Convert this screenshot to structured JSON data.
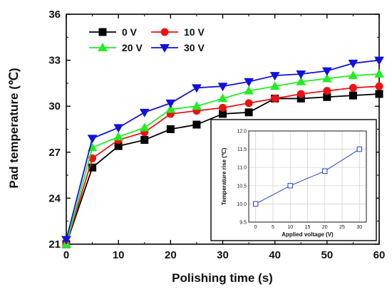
{
  "colors": {
    "series_0v": "#000000",
    "series_10v": "#ee1111",
    "series_20v": "#22ee22",
    "series_30v": "#1111dd",
    "inset_line": "#2244cc"
  },
  "chart_data": [
    {
      "type": "line",
      "xlabel": "Polishing time (s)",
      "ylabel": "Pad temperature (℃)",
      "xlim": [
        0,
        60
      ],
      "ylim": [
        21,
        36
      ],
      "xticks": [
        0,
        10,
        20,
        30,
        40,
        50,
        60
      ],
      "yticks": [
        21,
        24,
        27,
        30,
        33,
        36
      ],
      "x": [
        0,
        5,
        10,
        15,
        20,
        25,
        30,
        35,
        40,
        45,
        50,
        55,
        60
      ],
      "grid": false,
      "legend_position": "top-left",
      "series": [
        {
          "name": "0 V",
          "marker": "square",
          "values": [
            21.0,
            26.0,
            27.4,
            27.8,
            28.5,
            28.8,
            29.5,
            29.6,
            30.5,
            30.5,
            30.6,
            30.7,
            30.8
          ]
        },
        {
          "name": "10 V",
          "marker": "circle",
          "values": [
            21.0,
            26.6,
            27.8,
            28.3,
            29.5,
            29.7,
            29.9,
            30.2,
            30.5,
            30.8,
            31.0,
            31.2,
            31.3
          ]
        },
        {
          "name": "20 V",
          "marker": "triangle-up",
          "values": [
            21.0,
            27.3,
            28.0,
            28.6,
            29.8,
            30.0,
            30.5,
            31.0,
            31.3,
            31.6,
            31.8,
            32.0,
            32.1
          ]
        },
        {
          "name": "30 V",
          "marker": "triangle-down",
          "values": [
            21.3,
            27.9,
            28.6,
            29.6,
            30.2,
            31.2,
            31.3,
            31.6,
            32.0,
            32.1,
            32.3,
            32.8,
            33.0
          ]
        }
      ]
    },
    {
      "type": "line",
      "xlabel": "Applied voltage (V)",
      "ylabel": "Temperature rise (℃)",
      "xlim": [
        -2,
        32
      ],
      "ylim": [
        9.5,
        12.0
      ],
      "xticks": [
        0,
        5,
        10,
        15,
        20,
        25,
        30
      ],
      "yticks": [
        9.5,
        10.0,
        10.5,
        11.0,
        11.5,
        12.0
      ],
      "grid": true,
      "x": [
        0,
        10,
        20,
        30
      ],
      "series": [
        {
          "marker": "square",
          "values": [
            10.0,
            10.5,
            10.9,
            11.5
          ]
        }
      ]
    }
  ]
}
